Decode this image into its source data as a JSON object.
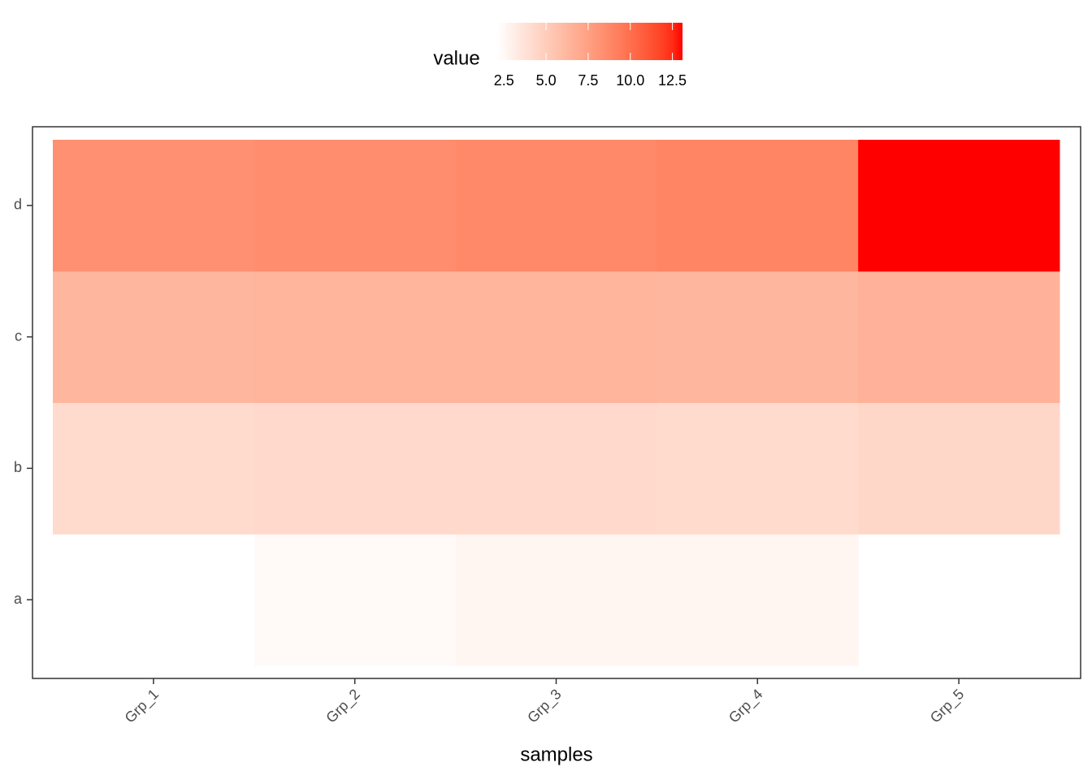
{
  "chart_data": {
    "type": "heatmap",
    "x_label": "samples",
    "categories": [
      "Grp_1",
      "Grp_2",
      "Grp_3",
      "Grp_4",
      "Grp_5"
    ],
    "y_categories": [
      "a",
      "b",
      "c",
      "d"
    ],
    "values": [
      [
        2.1,
        2.4,
        2.7,
        2.7,
        null
      ],
      [
        4.2,
        4.3,
        4.3,
        4.2,
        4.4
      ],
      [
        6.3,
        6.4,
        6.4,
        6.3,
        6.5
      ],
      [
        8.3,
        8.5,
        8.7,
        8.9,
        13.1
      ]
    ],
    "legend_title": "value",
    "colors": [
      "#ffffff",
      "#ff0000"
    ],
    "clim": [
      2.1,
      13.1
    ],
    "cticks": [
      2.5,
      {
        "value": 5,
        "label": "5.0"
      },
      7.5,
      {
        "value": 10,
        "label": "10.0"
      },
      12.5
    ],
    "legend_position": "top"
  }
}
